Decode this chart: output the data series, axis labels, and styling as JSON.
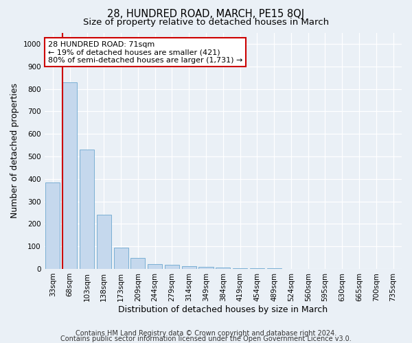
{
  "title": "28, HUNDRED ROAD, MARCH, PE15 8QJ",
  "subtitle": "Size of property relative to detached houses in March",
  "xlabel": "Distribution of detached houses by size in March",
  "ylabel": "Number of detached properties",
  "bar_labels": [
    "33sqm",
    "68sqm",
    "103sqm",
    "138sqm",
    "173sqm",
    "209sqm",
    "244sqm",
    "279sqm",
    "314sqm",
    "349sqm",
    "384sqm",
    "419sqm",
    "454sqm",
    "489sqm",
    "524sqm",
    "560sqm",
    "595sqm",
    "630sqm",
    "665sqm",
    "700sqm",
    "735sqm"
  ],
  "bar_values": [
    385,
    830,
    530,
    240,
    95,
    50,
    22,
    18,
    13,
    8,
    5,
    3,
    2,
    2,
    1,
    1,
    1,
    1,
    1,
    1,
    1
  ],
  "bar_color": "#c5d8ed",
  "bar_edge_color": "#7aafd4",
  "vline_color": "#cc0000",
  "ylim": [
    0,
    1050
  ],
  "yticks": [
    0,
    100,
    200,
    300,
    400,
    500,
    600,
    700,
    800,
    900,
    1000
  ],
  "annotation_title": "28 HUNDRED ROAD: 71sqm",
  "annotation_line1": "← 19% of detached houses are smaller (421)",
  "annotation_line2": "80% of semi-detached houses are larger (1,731) →",
  "annotation_box_color": "#ffffff",
  "annotation_box_edge": "#cc0000",
  "footer1": "Contains HM Land Registry data © Crown copyright and database right 2024.",
  "footer2": "Contains public sector information licensed under the Open Government Licence v3.0.",
  "bg_color": "#eaf0f6",
  "plot_bg_color": "#eaf0f6",
  "title_fontsize": 10.5,
  "subtitle_fontsize": 9.5,
  "axis_label_fontsize": 9,
  "tick_fontsize": 7.5,
  "annotation_fontsize": 8,
  "footer_fontsize": 7
}
